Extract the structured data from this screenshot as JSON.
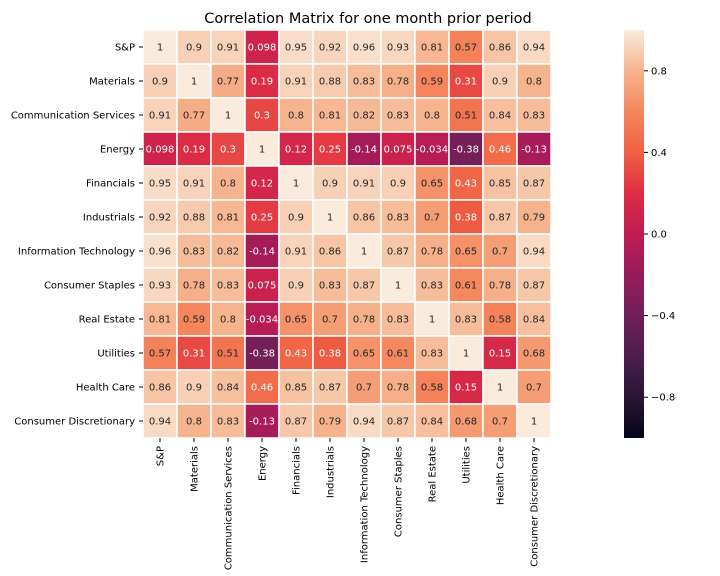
{
  "chart_data": {
    "type": "heatmap",
    "title": "Correlation Matrix for one month prior period",
    "rows": [
      "S&P",
      "Materials",
      "Communication Services",
      "Energy",
      "Financials",
      "Industrials",
      "Information Technology",
      "Consumer Staples",
      "Real Estate",
      "Utilities",
      "Health Care",
      "Consumer Discretionary"
    ],
    "columns": [
      "S&P",
      "Materials",
      "Communication Services",
      "Energy",
      "Financials",
      "Industrials",
      "Information Technology",
      "Consumer Staples",
      "Real Estate",
      "Utilities",
      "Health Care",
      "Consumer Discretionary"
    ],
    "values": [
      [
        1,
        0.9,
        0.91,
        0.098,
        0.95,
        0.92,
        0.96,
        0.93,
        0.81,
        0.57,
        0.86,
        0.94
      ],
      [
        0.9,
        1,
        0.77,
        0.19,
        0.91,
        0.88,
        0.83,
        0.78,
        0.59,
        0.31,
        0.9,
        0.8
      ],
      [
        0.91,
        0.77,
        1,
        0.3,
        0.8,
        0.81,
        0.82,
        0.83,
        0.8,
        0.51,
        0.84,
        0.83
      ],
      [
        0.098,
        0.19,
        0.3,
        1,
        0.12,
        0.25,
        -0.14,
        0.075,
        -0.034,
        -0.38,
        0.46,
        -0.13
      ],
      [
        0.95,
        0.91,
        0.8,
        0.12,
        1,
        0.9,
        0.91,
        0.9,
        0.65,
        0.43,
        0.85,
        0.87
      ],
      [
        0.92,
        0.88,
        0.81,
        0.25,
        0.9,
        1,
        0.86,
        0.83,
        0.7,
        0.38,
        0.87,
        0.79
      ],
      [
        0.96,
        0.83,
        0.82,
        -0.14,
        0.91,
        0.86,
        1,
        0.87,
        0.78,
        0.65,
        0.7,
        0.94
      ],
      [
        0.93,
        0.78,
        0.83,
        0.075,
        0.9,
        0.83,
        0.87,
        1,
        0.83,
        0.61,
        0.78,
        0.87
      ],
      [
        0.81,
        0.59,
        0.8,
        -0.034,
        0.65,
        0.7,
        0.78,
        0.83,
        1,
        0.83,
        0.58,
        0.84
      ],
      [
        0.57,
        0.31,
        0.51,
        -0.38,
        0.43,
        0.38,
        0.65,
        0.61,
        0.83,
        1,
        0.15,
        0.68
      ],
      [
        0.86,
        0.9,
        0.84,
        0.46,
        0.85,
        0.87,
        0.7,
        0.78,
        0.58,
        0.15,
        1,
        0.7
      ],
      [
        0.94,
        0.8,
        0.83,
        -0.13,
        0.87,
        0.79,
        0.94,
        0.87,
        0.84,
        0.68,
        0.7,
        1
      ]
    ],
    "value_labels": [
      [
        "1",
        "0.9",
        "0.91",
        "0.098",
        "0.95",
        "0.92",
        "0.96",
        "0.93",
        "0.81",
        "0.57",
        "0.86",
        "0.94"
      ],
      [
        "0.9",
        "1",
        "0.77",
        "0.19",
        "0.91",
        "0.88",
        "0.83",
        "0.78",
        "0.59",
        "0.31",
        "0.9",
        "0.8"
      ],
      [
        "0.91",
        "0.77",
        "1",
        "0.3",
        "0.8",
        "0.81",
        "0.82",
        "0.83",
        "0.8",
        "0.51",
        "0.84",
        "0.83"
      ],
      [
        "0.098",
        "0.19",
        "0.3",
        "1",
        "0.12",
        "0.25",
        "-0.14",
        "0.075",
        "-0.034",
        "-0.38",
        "0.46",
        "-0.13"
      ],
      [
        "0.95",
        "0.91",
        "0.8",
        "0.12",
        "1",
        "0.9",
        "0.91",
        "0.9",
        "0.65",
        "0.43",
        "0.85",
        "0.87"
      ],
      [
        "0.92",
        "0.88",
        "0.81",
        "0.25",
        "0.9",
        "1",
        "0.86",
        "0.83",
        "0.7",
        "0.38",
        "0.87",
        "0.79"
      ],
      [
        "0.96",
        "0.83",
        "0.82",
        "-0.14",
        "0.91",
        "0.86",
        "1",
        "0.87",
        "0.78",
        "0.65",
        "0.7",
        "0.94"
      ],
      [
        "0.93",
        "0.78",
        "0.83",
        "0.075",
        "0.9",
        "0.83",
        "0.87",
        "1",
        "0.83",
        "0.61",
        "0.78",
        "0.87"
      ],
      [
        "0.81",
        "0.59",
        "0.8",
        "-0.034",
        "0.65",
        "0.7",
        "0.78",
        "0.83",
        "1",
        "0.83",
        "0.58",
        "0.84"
      ],
      [
        "0.57",
        "0.31",
        "0.51",
        "-0.38",
        "0.43",
        "0.38",
        "0.65",
        "0.61",
        "0.83",
        "1",
        "0.15",
        "0.68"
      ],
      [
        "0.86",
        "0.9",
        "0.84",
        "0.46",
        "0.85",
        "0.87",
        "0.7",
        "0.78",
        "0.58",
        "0.15",
        "1",
        "0.7"
      ],
      [
        "0.94",
        "0.8",
        "0.83",
        "-0.13",
        "0.87",
        "0.79",
        "0.94",
        "0.87",
        "0.84",
        "0.68",
        "0.7",
        "1"
      ]
    ],
    "colorbar": {
      "colormap": "rocket",
      "range": [
        -1,
        1
      ],
      "ticks": [
        0.8,
        0.4,
        0.0,
        -0.4,
        -0.8
      ],
      "tick_labels": [
        "0.8",
        "0.4",
        "0.0",
        "−0.4",
        "−0.8"
      ]
    },
    "cell_border_color": "#ffffff"
  }
}
